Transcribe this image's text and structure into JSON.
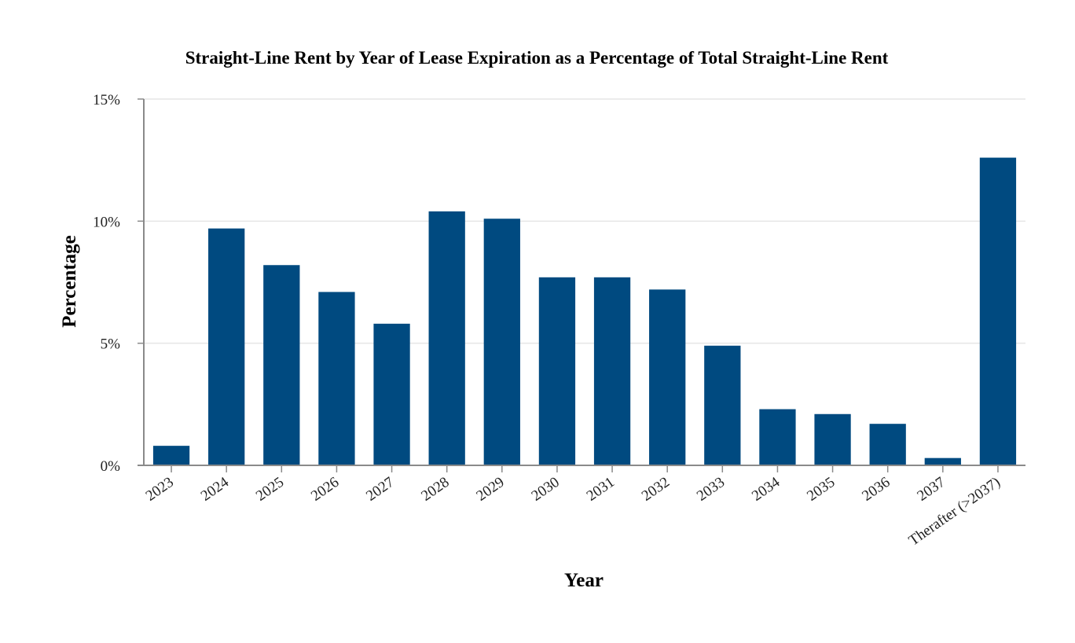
{
  "chart_data": {
    "type": "bar",
    "title": "Straight-Line Rent by Year of Lease Expiration as a Percentage of Total Straight-Line Rent",
    "xlabel": "Year",
    "ylabel": "Percentage",
    "categories": [
      "2023",
      "2024",
      "2025",
      "2026",
      "2027",
      "2028",
      "2029",
      "2030",
      "2031",
      "2032",
      "2033",
      "2034",
      "2035",
      "2036",
      "2037",
      "Therafter (>2037)"
    ],
    "series": [
      {
        "name": "Percentage",
        "values": [
          0.8,
          9.7,
          8.2,
          7.1,
          5.8,
          10.4,
          10.1,
          7.7,
          7.7,
          7.2,
          4.9,
          2.3,
          2.1,
          1.7,
          0.3,
          12.6
        ]
      }
    ],
    "ylim": [
      0,
      15
    ],
    "yticks": [
      0,
      5,
      10,
      15
    ],
    "ytick_labels": [
      "0%",
      "5%",
      "10%",
      "15%"
    ],
    "grid": true,
    "legend": "none",
    "bar_color": "#004a80"
  }
}
